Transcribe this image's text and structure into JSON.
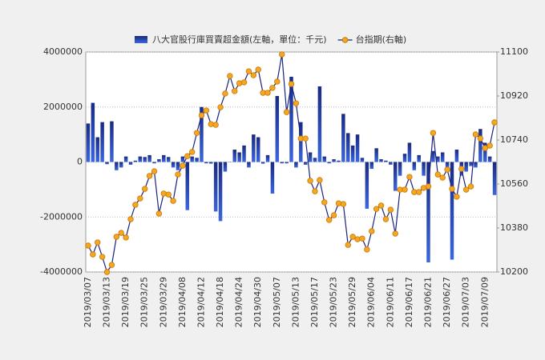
{
  "chart_data": {
    "type": "bar_line",
    "categories": [
      "2019/03/07",
      null,
      null,
      null,
      "2019/03/13",
      null,
      null,
      null,
      "2019/03/19",
      null,
      null,
      null,
      "2019/03/25",
      null,
      null,
      null,
      "2019/03/29",
      null,
      null,
      null,
      "2019/04/08",
      null,
      null,
      null,
      "2019/04/12",
      null,
      null,
      null,
      "2019/04/18",
      null,
      null,
      null,
      "2019/04/24",
      null,
      null,
      null,
      "2019/04/30",
      null,
      null,
      null,
      "2019/05/07",
      null,
      null,
      null,
      "2019/05/13",
      null,
      null,
      null,
      "2019/05/17",
      null,
      null,
      null,
      "2019/05/23",
      null,
      null,
      null,
      "2019/05/29",
      null,
      null,
      null,
      "2019/06/04",
      null,
      null,
      null,
      "2019/06/11",
      null,
      null,
      null,
      "2019/06/17",
      null,
      null,
      null,
      "2019/06/21",
      null,
      null,
      null,
      "2019/06/27",
      null,
      null,
      null,
      "2019/07/03",
      null,
      null,
      null,
      "2019/07/09",
      null,
      null
    ],
    "series": [
      {
        "name": "八大官股行庫買賣超金額(左軸，單位：千元)",
        "type": "bar",
        "color": "#1e3aa8",
        "axis": "y",
        "values": [
          1400000,
          2150000,
          900000,
          1450000,
          -80000,
          1480000,
          -300000,
          -200000,
          200000,
          -100000,
          50000,
          200000,
          180000,
          250000,
          -50000,
          100000,
          250000,
          180000,
          -200000,
          -300000,
          200000,
          -1750000,
          200000,
          150000,
          2000000,
          -50000,
          -60000,
          -1800000,
          -2150000,
          -350000,
          10000,
          450000,
          350000,
          600000,
          -200000,
          1000000,
          900000,
          -60000,
          250000,
          -1150000,
          2400000,
          -50000,
          -50000,
          3100000,
          -200000,
          1450000,
          -100000,
          350000,
          150000,
          2750000,
          200000,
          -50000,
          100000,
          50000,
          1750000,
          1050000,
          600000,
          1000000,
          150000,
          -1700000,
          -250000,
          500000,
          100000,
          50000,
          -100000,
          -1050000,
          -500000,
          300000,
          700000,
          -300000,
          250000,
          -500000,
          -3650000,
          400000,
          200000,
          350000,
          -200000,
          -3550000,
          450000,
          -500000,
          -350000,
          -150000,
          -200000,
          1200000,
          700000,
          200000,
          -1200000
        ]
      },
      {
        "name": "台指期(右軸)",
        "type": "line",
        "color": "#1a237e",
        "marker_color": "#f5a623",
        "axis": "y2",
        "values": [
          10308,
          10272,
          10321,
          10262,
          10200,
          10229,
          10344,
          10360,
          10341,
          10416,
          10475,
          10501,
          10540,
          10593,
          10612,
          10439,
          10521,
          10517,
          10491,
          10599,
          10635,
          10674,
          10691,
          10769,
          10841,
          10861,
          10805,
          10802,
          10874,
          10930,
          11002,
          10940,
          10972,
          10976,
          11021,
          11005,
          11028,
          10933,
          10933,
          10953,
          10979,
          11090,
          10854,
          10969,
          10890,
          10746,
          10746,
          10573,
          10530,
          10576,
          10485,
          10413,
          10432,
          10481,
          10478,
          10311,
          10344,
          10334,
          10337,
          10292,
          10367,
          10458,
          10472,
          10416,
          10455,
          10357,
          10537,
          10537,
          10589,
          10527,
          10527,
          10544,
          10550,
          10769,
          10599,
          10586,
          10619,
          10540,
          10508,
          10622,
          10537,
          10550,
          10763,
          10746,
          10707,
          10717,
          10812
        ]
      }
    ],
    "ylim": [
      -4000000,
      4000000
    ],
    "yticks": [
      -4000000,
      -2000000,
      0,
      2000000,
      4000000
    ],
    "y2lim": [
      10200,
      11100
    ],
    "y2ticks": [
      10200,
      10380,
      10560,
      10740,
      10920,
      11100
    ],
    "grid": true,
    "legend": "top"
  }
}
